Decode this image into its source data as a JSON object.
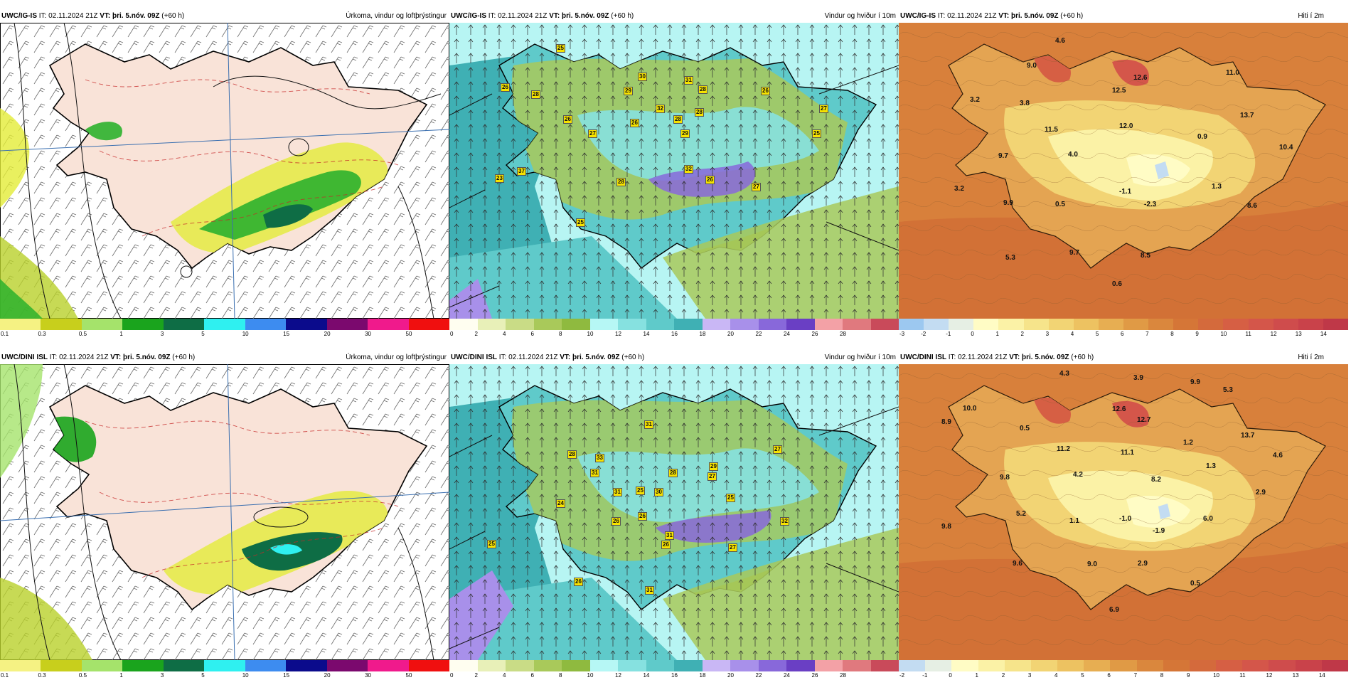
{
  "rows": [
    {
      "model": "UWC/IG-IS",
      "it_label": "IT:",
      "it_value": "02.11.2024 21Z",
      "vt_label": "VT:",
      "vt_value": "þri. 5.nóv. 09Z",
      "lead": "(+60 h)",
      "panels": {
        "precip": {
          "title": "Úrkoma, vindur og loftþrýstingur"
        },
        "wind": {
          "title": "Vindur og hviður í 10m"
        },
        "temp": {
          "title": "Hiti í 2m"
        }
      },
      "temp_labels": [
        "4.6",
        "9.0",
        "3.2",
        "3.8",
        "12.5",
        "12.6",
        "11.0",
        "13.7",
        "10.4",
        "11.5",
        "12.0",
        "0.9",
        "4.0",
        "9.7",
        "3.2",
        "9.9",
        "0.5",
        "-1.1",
        "-2.3",
        "1.3",
        "8.6",
        "5.3",
        "9.7",
        "8.5",
        "0.6"
      ],
      "gust_labels": [
        "25",
        "26",
        "30",
        "28",
        "31",
        "28",
        "29",
        "32",
        "28",
        "26",
        "27",
        "26",
        "28",
        "29",
        "26",
        "27",
        "25",
        "23",
        "37",
        "28",
        "32",
        "26",
        "27",
        "25"
      ]
    },
    {
      "model": "UWC/DINI ISL",
      "it_label": "IT:",
      "it_value": "02.11.2024 21Z",
      "vt_label": "VT:",
      "vt_value": "þri. 5.nóv. 09Z",
      "lead": "(+60 h)",
      "panels": {
        "precip": {
          "title": "Úrkoma, vindur og loftþrýstingur"
        },
        "wind": {
          "title": "Vindur og hviður í 10m"
        },
        "temp": {
          "title": "Hiti í 2m"
        }
      },
      "temp_labels": [
        "4.3",
        "3.9",
        "9.9",
        "5.3",
        "10.0",
        "8.9",
        "0.5",
        "12.6",
        "12.7",
        "11.2",
        "11.1",
        "1.2",
        "13.7",
        "4.6",
        "9.8",
        "4.2",
        "8.2",
        "1.3",
        "2.9",
        "5.2",
        "1.1",
        "-1.0",
        "-1.9",
        "6.0",
        "9.8",
        "9.6",
        "9.0",
        "2.9",
        "0.5",
        "6.9"
      ],
      "gust_labels": [
        "31",
        "28",
        "31",
        "33",
        "29",
        "27",
        "28",
        "31",
        "30",
        "25",
        "25",
        "27",
        "24",
        "26",
        "31",
        "32",
        "27",
        "25",
        "26",
        "26",
        "26",
        "31"
      ]
    }
  ],
  "scales": {
    "precip": {
      "ticks": [
        "0.1",
        "0.3",
        "0.5",
        "1",
        "3",
        "5",
        "10",
        "15",
        "20",
        "30",
        "50"
      ],
      "colors": [
        "#f5f283",
        "#c8cf1c",
        "#a5e36b",
        "#1aa41d",
        "#0e6d45",
        "#2ff0f0",
        "#3d8cf0",
        "#0b0b8c",
        "#7b096e",
        "#f01a8c",
        "#f00f0f"
      ]
    },
    "wind": {
      "ticks": [
        "0",
        "2",
        "4",
        "6",
        "8",
        "10",
        "12",
        "14",
        "16",
        "18",
        "20",
        "22",
        "24",
        "26",
        "28"
      ],
      "colors": [
        "#fffef0",
        "#e8f0b8",
        "#c9dc86",
        "#a9c95a",
        "#8fba3f",
        "#b6f7f5",
        "#86e1e0",
        "#5fcaca",
        "#3fb0b4",
        "#c9b7f5",
        "#a890ea",
        "#8868da",
        "#6a3fc4",
        "#f3a1a6",
        "#e0797e",
        "#c94a5a"
      ]
    },
    "temp_ig": {
      "ticks": [
        "-3",
        "-2",
        "-1",
        "0",
        "1",
        "2",
        "3",
        "4",
        "5",
        "6",
        "7",
        "8",
        "9",
        "10",
        "11",
        "12",
        "13",
        "14"
      ],
      "colors": [
        "#9cc8f0",
        "#c3dcf2",
        "#e6efe4",
        "#fffcc5",
        "#fbf2a6",
        "#f6e48b",
        "#f2d474",
        "#edc261",
        "#e7ae52",
        "#e09a45",
        "#da873d",
        "#d57637",
        "#d46a3c",
        "#d65f44",
        "#d4564a",
        "#cf4c4c",
        "#c9424a",
        "#bf3848"
      ]
    },
    "temp_dini": {
      "ticks": [
        "-2",
        "-1",
        "0",
        "1",
        "2",
        "3",
        "4",
        "5",
        "6",
        "7",
        "8",
        "9",
        "10",
        "11",
        "12",
        "13",
        "14"
      ],
      "colors": [
        "#c3dcf2",
        "#e6efe4",
        "#fffcc5",
        "#fbf2a6",
        "#f6e48b",
        "#f2d474",
        "#edc261",
        "#e7ae52",
        "#e09a45",
        "#da873d",
        "#d57637",
        "#d46a3c",
        "#d65f44",
        "#d4564a",
        "#cf4c4c",
        "#c9424a",
        "#bf3848"
      ]
    }
  }
}
